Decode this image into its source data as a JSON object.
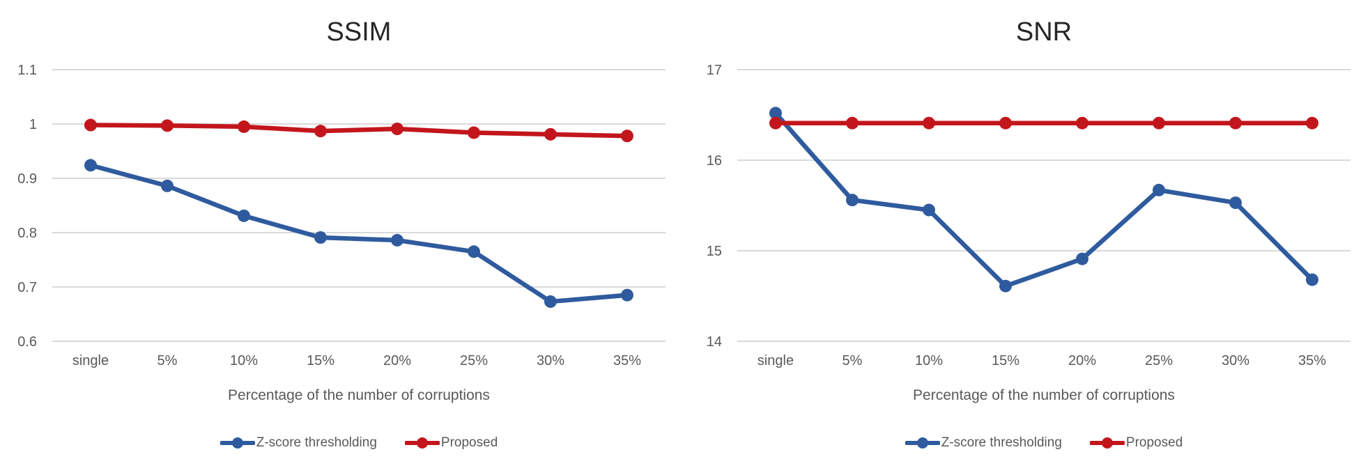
{
  "colors": {
    "background": "#ffffff",
    "grid_line": "#d9d9d9",
    "axis_text": "#595959",
    "title_text": "#262626",
    "series_blue": "#2f5b9e",
    "series_red": "#c3161c"
  },
  "chart_data": [
    {
      "type": "line",
      "title": "SSIM",
      "xlabel": "Percentage of the number of corruptions",
      "ylabel": "",
      "categories": [
        "single",
        "5%",
        "10%",
        "15%",
        "20%",
        "25%",
        "30%",
        "35%"
      ],
      "series": [
        {
          "name": "Z-score thresholding",
          "color": "#2f5b9e",
          "values": [
            0.924,
            0.886,
            0.831,
            0.791,
            0.786,
            0.765,
            0.673,
            0.685
          ]
        },
        {
          "name": "Proposed",
          "color": "#c3161c",
          "values": [
            0.998,
            0.997,
            0.995,
            0.987,
            0.991,
            0.984,
            0.981,
            0.978
          ]
        }
      ],
      "ylim": [
        0.6,
        1.1
      ],
      "ytick_labels": [
        "0.6",
        "0.7",
        "0.8",
        "0.9",
        "1",
        "1.1"
      ],
      "grid": "horizontal",
      "legend_position": "bottom"
    },
    {
      "type": "line",
      "title": "SNR",
      "xlabel": "Percentage of the number of corruptions",
      "ylabel": "",
      "categories": [
        "single",
        "5%",
        "10%",
        "15%",
        "20%",
        "25%",
        "30%",
        "35%"
      ],
      "series": [
        {
          "name": "Z-score thresholding",
          "color": "#2f5b9e",
          "values": [
            16.52,
            15.56,
            15.45,
            14.61,
            14.91,
            15.67,
            15.53,
            14.68
          ]
        },
        {
          "name": "Proposed",
          "color": "#c3161c",
          "values": [
            16.41,
            16.41,
            16.41,
            16.41,
            16.41,
            16.41,
            16.41,
            16.41
          ]
        }
      ],
      "ylim": [
        14,
        17
      ],
      "ytick_labels": [
        "14",
        "15",
        "16",
        "17"
      ],
      "grid": "horizontal",
      "legend_position": "bottom"
    }
  ]
}
